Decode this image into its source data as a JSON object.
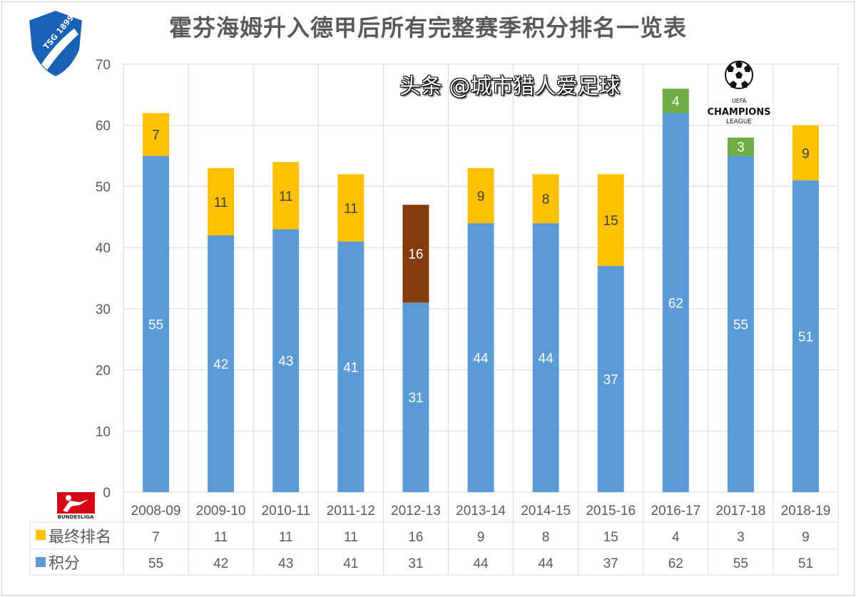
{
  "chart_data": {
    "type": "bar",
    "stacked": true,
    "title": "霍芬海姆升入德甲后所有完整赛季积分排名一览表",
    "categories": [
      "2008-09",
      "2009-10",
      "2010-11",
      "2011-12",
      "2012-13",
      "2013-14",
      "2014-15",
      "2015-16",
      "2016-17",
      "2017-18",
      "2018-19"
    ],
    "series": [
      {
        "name": "积分",
        "color": "#5B9BD5",
        "values": [
          55,
          42,
          43,
          41,
          31,
          44,
          44,
          37,
          62,
          55,
          51
        ]
      },
      {
        "name": "最终排名",
        "color": "#FFC000",
        "values": [
          7,
          11,
          11,
          11,
          16,
          9,
          8,
          15,
          4,
          3,
          9
        ],
        "point_colors": [
          "#FFC000",
          "#FFC000",
          "#FFC000",
          "#FFC000",
          "#843C0C",
          "#FFC000",
          "#FFC000",
          "#FFC000",
          "#70AD47",
          "#70AD47",
          "#FFC000"
        ]
      }
    ],
    "ylim": [
      0,
      70
    ],
    "yticks": [
      0,
      10,
      20,
      30,
      40,
      50,
      60,
      70
    ],
    "grid": true,
    "data_table": true,
    "legend_placement": "data-table"
  },
  "logos": {
    "club": "TSG 1899 Hoffenheim",
    "league": "BUNDESLIGA",
    "champions_league": [
      "UEFA",
      "CHAMPIONS",
      "LEAGUE"
    ]
  },
  "watermark": "头条 @城市猎人爱足球"
}
